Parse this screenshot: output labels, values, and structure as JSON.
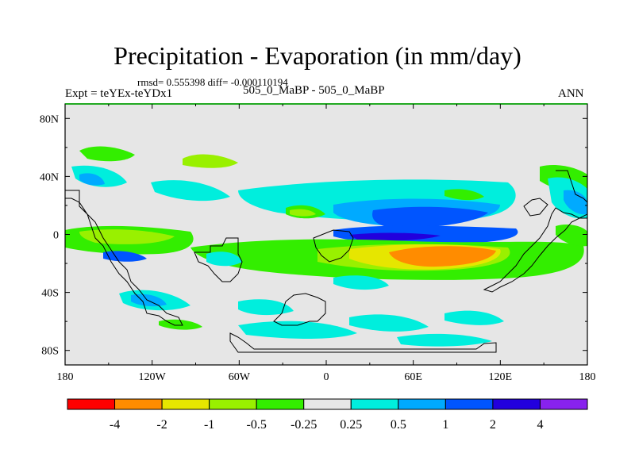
{
  "header": {
    "title": "Precipitation - Evaporation (in mm/day)",
    "stats": "rmsd= 0.555398  diff= -0.000110194",
    "expt": "Expt = teYEx-teYDx1",
    "cases": "505_0_MaBP - 505_0_MaBP",
    "season": "ANN"
  },
  "chart_data": {
    "type": "heatmap",
    "title": "Precipitation - Evaporation (in mm/day)",
    "projection": "cylindrical equidistant",
    "xlim": [
      -180,
      180
    ],
    "ylim": [
      -90,
      90
    ],
    "x_ticks": [
      {
        "value": -180,
        "label": "180"
      },
      {
        "value": -120,
        "label": "120W"
      },
      {
        "value": -60,
        "label": "60W"
      },
      {
        "value": 0,
        "label": "0"
      },
      {
        "value": 60,
        "label": "60E"
      },
      {
        "value": 120,
        "label": "120E"
      },
      {
        "value": 180,
        "label": "180"
      }
    ],
    "y_ticks": [
      {
        "value": 80,
        "label": "80N"
      },
      {
        "value": 40,
        "label": "40N"
      },
      {
        "value": 0,
        "label": "0"
      },
      {
        "value": -40,
        "label": "40S"
      },
      {
        "value": -80,
        "label": "80S"
      }
    ],
    "contour_levels": [
      -4,
      -2,
      -1,
      -0.5,
      -0.25,
      0.25,
      0.5,
      1,
      2,
      4
    ],
    "colorbar_colors": [
      "#ff0000",
      "#ff8c00",
      "#e6e600",
      "#99f000",
      "#33ee00",
      "#e6e6e6",
      "#00eedd",
      "#00aaff",
      "#0055ff",
      "#2200dd",
      "#8822ee"
    ],
    "colorbar_labels": [
      "-4",
      "-2",
      "-1",
      "-0.5",
      "-0.25",
      "0.25",
      "0.5",
      "1",
      "2",
      "4"
    ],
    "background_color": "#e6e6e6",
    "features": [
      {
        "name": "tropical-dry-band",
        "level": -4,
        "color": "#ff8c00",
        "lon": [
          50,
          110
        ],
        "lat": [
          -10,
          -24
        ]
      },
      {
        "name": "tropical-dry-ring",
        "level": -1,
        "color": "#e6e600",
        "lon": [
          25,
          130
        ],
        "lat": [
          -8,
          -28
        ]
      },
      {
        "name": "south-subtropical-band",
        "level": -0.5,
        "color": "#33ee00",
        "lon": [
          -180,
          180
        ],
        "lat": [
          -5,
          -30
        ]
      },
      {
        "name": "north-equatorial-wet",
        "level": 2,
        "color": "#0055ff",
        "lon": [
          10,
          120
        ],
        "lat": [
          0,
          15
        ]
      },
      {
        "name": "north-equatorial-core",
        "level": 4,
        "color": "#2200dd",
        "lon": [
          50,
          110
        ],
        "lat": [
          -5,
          8
        ]
      },
      {
        "name": "north-midlat-wet",
        "level": 0.5,
        "color": "#00eedd",
        "lon": [
          -140,
          180
        ],
        "lat": [
          0,
          30
        ]
      },
      {
        "name": "south-ocean-wet",
        "level": 0.5,
        "color": "#00eedd",
        "lon": [
          -80,
          60
        ],
        "lat": [
          -40,
          -80
        ]
      }
    ]
  }
}
